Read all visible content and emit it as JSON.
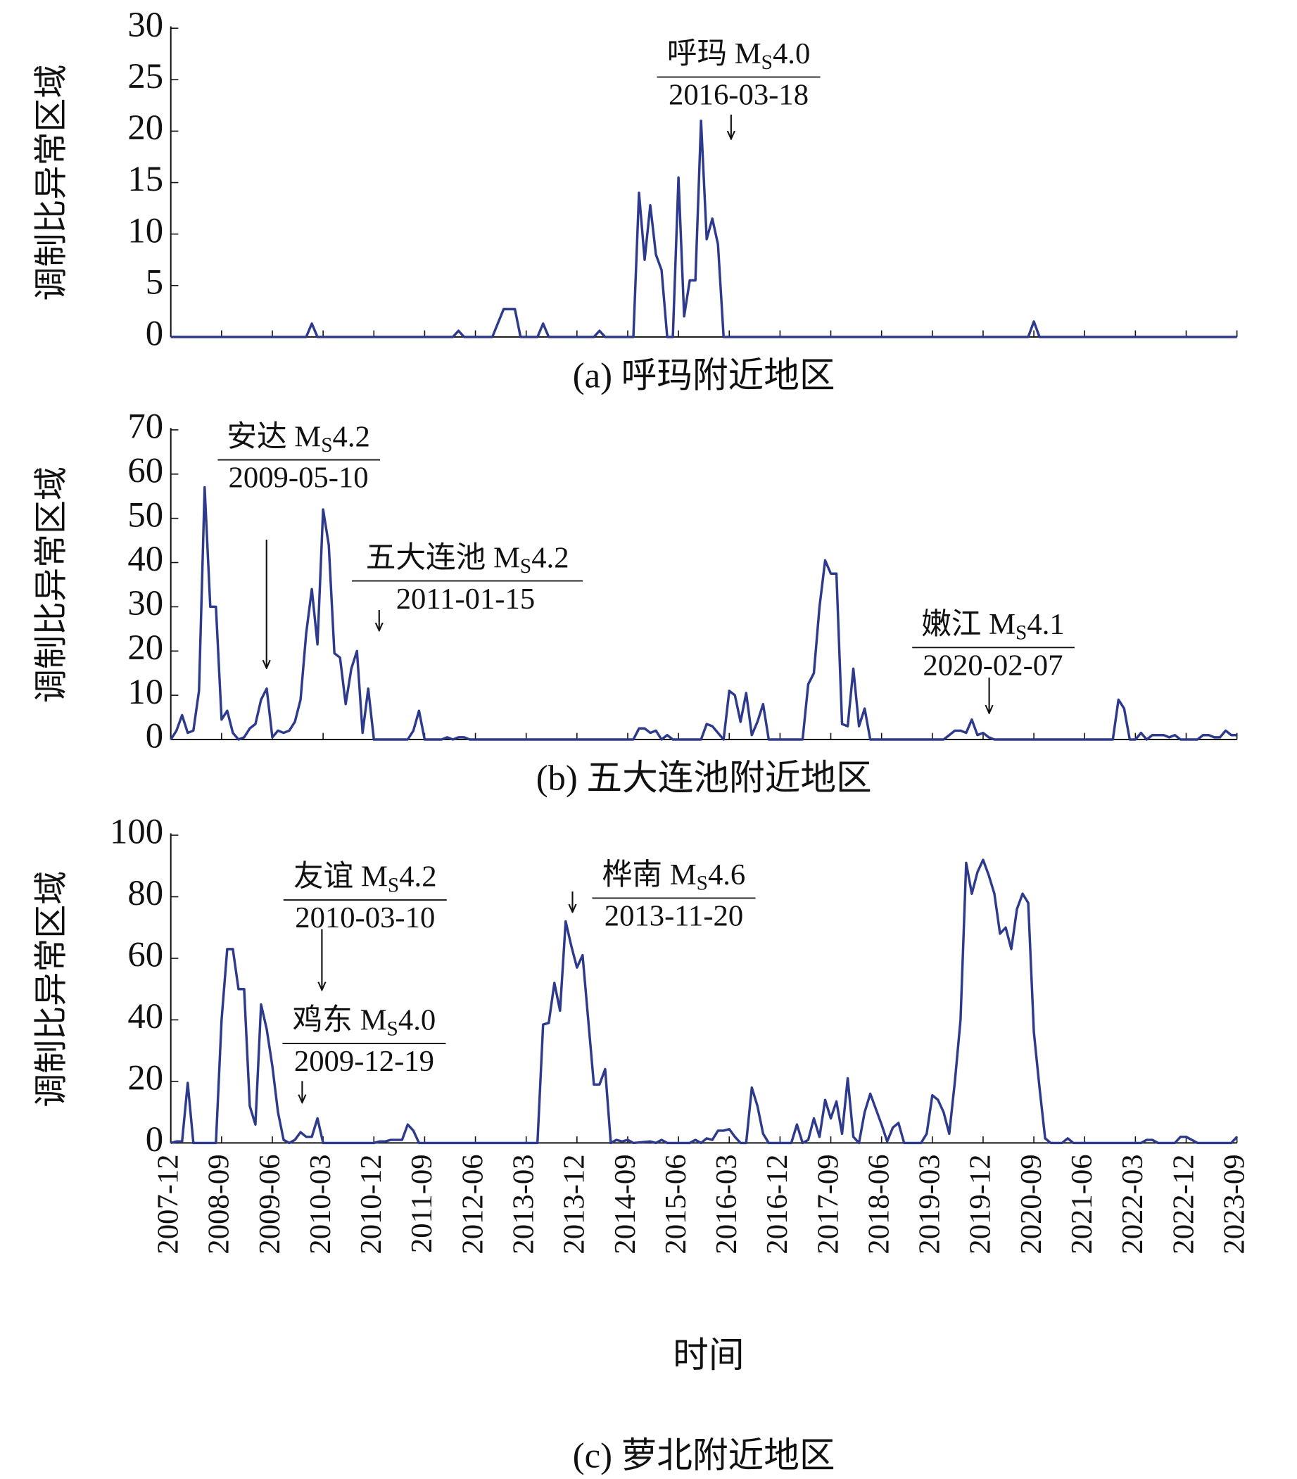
{
  "chart_data": [
    {
      "type": "line",
      "caption": "(a) 呼玛附近地区",
      "ylabel": "调制比异常区域",
      "xlim": [
        "2007-12",
        "2023-09"
      ],
      "ylim": [
        0,
        30
      ],
      "yticks": [
        0,
        5,
        10,
        15,
        20,
        25,
        30
      ],
      "color": "#2e3a8c",
      "x": [
        "2007-12",
        "2009-12",
        "2010-01",
        "2010-02",
        "2012-02",
        "2012-03",
        "2012-04",
        "2012-09",
        "2012-11",
        "2013-01",
        "2013-02",
        "2013-05",
        "2013-06",
        "2013-07",
        "2014-03",
        "2014-04",
        "2014-05",
        "2014-10",
        "2014-11",
        "2014-12",
        "2015-01",
        "2015-02",
        "2015-03",
        "2015-04",
        "2015-05",
        "2015-06",
        "2015-07",
        "2015-08",
        "2015-09",
        "2015-10",
        "2015-11",
        "2015-12",
        "2016-01",
        "2016-02",
        "2020-08",
        "2020-09",
        "2020-10",
        "2023-09"
      ],
      "values": [
        0,
        0,
        1.3,
        0,
        0,
        0.6,
        0,
        0,
        2.7,
        2.7,
        0,
        0,
        1.3,
        0,
        0,
        0.6,
        0,
        0,
        14,
        7.5,
        12.8,
        8,
        6.5,
        0,
        0,
        15.5,
        2,
        5.5,
        5.5,
        21,
        9.5,
        11.5,
        9,
        0,
        0,
        1.5,
        0,
        0
      ],
      "annotations": [
        {
          "label": [
            "呼玛 M",
            "S",
            "4.0"
          ],
          "date": "2016-03-18"
        }
      ]
    },
    {
      "type": "line",
      "caption": "(b) 五大连池附近地区",
      "ylabel": "调制比异常区域",
      "xlim": [
        "2007-12",
        "2023-09"
      ],
      "ylim": [
        0,
        70
      ],
      "yticks": [
        0,
        10,
        20,
        30,
        40,
        50,
        60,
        70
      ],
      "color": "#2e3a8c",
      "x": [
        "2007-12",
        "2008-01",
        "2008-02",
        "2008-03",
        "2008-04",
        "2008-05",
        "2008-06",
        "2008-07",
        "2008-08",
        "2008-09",
        "2008-10",
        "2008-11",
        "2008-12",
        "2009-01",
        "2009-02",
        "2009-03",
        "2009-04",
        "2009-05",
        "2009-06",
        "2009-07",
        "2009-08",
        "2009-09",
        "2009-10",
        "2009-11",
        "2009-12",
        "2010-01",
        "2010-02",
        "2010-03",
        "2010-04",
        "2010-05",
        "2010-06",
        "2010-07",
        "2010-08",
        "2010-09",
        "2010-10",
        "2010-11",
        "2010-12",
        "2011-06",
        "2011-07",
        "2011-08",
        "2011-09",
        "2011-12",
        "2012-01",
        "2012-02",
        "2012-03",
        "2012-04",
        "2012-05",
        "2014-10",
        "2014-11",
        "2014-12",
        "2015-01",
        "2015-02",
        "2015-03",
        "2015-04",
        "2015-05",
        "2015-10",
        "2015-11",
        "2015-12",
        "2016-01",
        "2016-02",
        "2016-03",
        "2016-04",
        "2016-05",
        "2016-06",
        "2016-07",
        "2016-08",
        "2016-09",
        "2016-10",
        "2017-04",
        "2017-05",
        "2017-06",
        "2017-07",
        "2017-08",
        "2017-09",
        "2017-10",
        "2017-11",
        "2017-12",
        "2018-01",
        "2018-02",
        "2018-03",
        "2018-04",
        "2019-05",
        "2019-06",
        "2019-07",
        "2019-08",
        "2019-09",
        "2019-10",
        "2019-11",
        "2019-12",
        "2020-01",
        "2020-02",
        "2021-11",
        "2021-12",
        "2022-01",
        "2022-02",
        "2022-03",
        "2022-04",
        "2022-05",
        "2022-06",
        "2022-07",
        "2022-08",
        "2022-09",
        "2022-10",
        "2022-11",
        "2023-02",
        "2023-03",
        "2023-04",
        "2023-05",
        "2023-06",
        "2023-07",
        "2023-08",
        "2023-09"
      ],
      "values": [
        0,
        2,
        5.5,
        1.5,
        2,
        11,
        57,
        30,
        30,
        4.5,
        6.5,
        1.5,
        0,
        0.5,
        2.5,
        3.5,
        9,
        11.5,
        0.5,
        2,
        1.5,
        2,
        4,
        9,
        24,
        34,
        21.5,
        52,
        44,
        19.5,
        18.5,
        8,
        16,
        20,
        1.5,
        11.5,
        0,
        0,
        2,
        6.5,
        0,
        0,
        0.5,
        0,
        0.5,
        0.5,
        0,
        0,
        2.5,
        2.5,
        1.5,
        2,
        0,
        1,
        0,
        0,
        3.5,
        3,
        1.5,
        0,
        11,
        10,
        4,
        10.5,
        1,
        4,
        8,
        0,
        0,
        12.5,
        15,
        30,
        40.5,
        37.5,
        37.5,
        3.5,
        3,
        16,
        3,
        7,
        0,
        0,
        1,
        2,
        2,
        1.5,
        4.5,
        1,
        1.5,
        0.5,
        0,
        0,
        9,
        7,
        0,
        0,
        1.5,
        0,
        1,
        1,
        1,
        0.5,
        1,
        0,
        0,
        1,
        1,
        0.5,
        0.5,
        2,
        1,
        1
      ],
      "annotations": [
        {
          "label": [
            "安达 M",
            "S",
            "4.2"
          ],
          "date": "2009-05-10"
        },
        {
          "label": [
            "五大连池 M",
            "S",
            "4.2"
          ],
          "date": "2011-01-15"
        },
        {
          "label": [
            "嫩江 M",
            "S",
            "4.1"
          ],
          "date": "2020-02-07"
        }
      ]
    },
    {
      "type": "line",
      "caption": "(c) 萝北附近地区",
      "ylabel": "调制比异常区域",
      "xlabel": "时间",
      "xlim": [
        "2007-12",
        "2023-09"
      ],
      "ylim": [
        0,
        100
      ],
      "yticks": [
        0,
        20,
        40,
        60,
        80,
        100
      ],
      "xticks": [
        "2007-12",
        "2008-09",
        "2009-06",
        "2010-03",
        "2010-12",
        "2011-09",
        "2012-06",
        "2013-03",
        "2013-12",
        "2014-09",
        "2015-06",
        "2016-03",
        "2016-12",
        "2017-09",
        "2018-06",
        "2019-03",
        "2019-12",
        "2020-09",
        "2021-06",
        "2022-03",
        "2022-12",
        "2023-09"
      ],
      "color": "#2e3a8c",
      "x": [
        "2007-12",
        "2008-01",
        "2008-02",
        "2008-03",
        "2008-04",
        "2008-08",
        "2008-09",
        "2008-10",
        "2008-11",
        "2008-12",
        "2009-01",
        "2009-02",
        "2009-03",
        "2009-04",
        "2009-05",
        "2009-06",
        "2009-07",
        "2009-08",
        "2009-09",
        "2009-10",
        "2009-11",
        "2009-12",
        "2010-01",
        "2010-02",
        "2010-03",
        "2010-12",
        "2011-01",
        "2011-02",
        "2011-03",
        "2011-04",
        "2011-05",
        "2011-06",
        "2011-07",
        "2011-08",
        "2013-05",
        "2013-06",
        "2013-07",
        "2013-08",
        "2013-09",
        "2013-10",
        "2013-11",
        "2013-12",
        "2014-01",
        "2014-02",
        "2014-03",
        "2014-04",
        "2014-05",
        "2014-06",
        "2014-07",
        "2014-08",
        "2014-09",
        "2014-10",
        "2015-01",
        "2015-02",
        "2015-03",
        "2015-04",
        "2015-08",
        "2015-09",
        "2015-10",
        "2015-11",
        "2015-12",
        "2016-01",
        "2016-02",
        "2016-03",
        "2016-04",
        "2016-05",
        "2016-06",
        "2016-07",
        "2016-08",
        "2016-09",
        "2016-10",
        "2017-02",
        "2017-03",
        "2017-04",
        "2017-05",
        "2017-06",
        "2017-07",
        "2017-08",
        "2017-09",
        "2017-10",
        "2017-11",
        "2017-12",
        "2018-01",
        "2018-02",
        "2018-03",
        "2018-04",
        "2018-05",
        "2018-06",
        "2018-07",
        "2018-08",
        "2018-09",
        "2018-10",
        "2019-01",
        "2019-02",
        "2019-03",
        "2019-04",
        "2019-05",
        "2019-06",
        "2019-07",
        "2019-08",
        "2019-09",
        "2019-10",
        "2019-11",
        "2019-12",
        "2020-01",
        "2020-02",
        "2020-03",
        "2020-04",
        "2020-05",
        "2020-06",
        "2020-07",
        "2020-08",
        "2020-09",
        "2020-10",
        "2020-11",
        "2020-12",
        "2021-02",
        "2021-03",
        "2021-04",
        "2022-04",
        "2022-05",
        "2022-06",
        "2022-07",
        "2022-10",
        "2022-11",
        "2022-12",
        "2023-01",
        "2023-02",
        "2023-08",
        "2023-09"
      ],
      "values": [
        0,
        0.5,
        0.5,
        19.5,
        0,
        0,
        40,
        63,
        63,
        50,
        50,
        12,
        6,
        45,
        37,
        25,
        10,
        1,
        0,
        1,
        3.5,
        2,
        2,
        8,
        0,
        0,
        0.5,
        0.5,
        1,
        1,
        1,
        6,
        4,
        0,
        0,
        38.5,
        39,
        52,
        43,
        72,
        64,
        57,
        61,
        40,
        19,
        19,
        24,
        0,
        1,
        0.5,
        1,
        0,
        0.5,
        0,
        1,
        0,
        0,
        1,
        0,
        1.5,
        1,
        4,
        4,
        4.5,
        2,
        0,
        0,
        18,
        12,
        3,
        0,
        0,
        6,
        0,
        1,
        8,
        2,
        14,
        8,
        13.5,
        3,
        21,
        2,
        0,
        10,
        16,
        11,
        6,
        0.5,
        5,
        6.5,
        0,
        0,
        3,
        15.5,
        14,
        10,
        3,
        20,
        40,
        91,
        81,
        88,
        92,
        87,
        81,
        68,
        70,
        63,
        76,
        81,
        78,
        36,
        18,
        1.5,
        0,
        0,
        1.5,
        0,
        0,
        1,
        1,
        0,
        0,
        2,
        2,
        1,
        0,
        0,
        2
      ],
      "annotations": [
        {
          "label": [
            "友谊 M",
            "S",
            "4.2"
          ],
          "date": "2010-03-10"
        },
        {
          "label": [
            "鸡东 M",
            "S",
            "4.0"
          ],
          "date": "2009-12-19"
        },
        {
          "label": [
            "桦南 M",
            "S",
            "4.6"
          ],
          "date": "2013-11-20"
        }
      ]
    }
  ]
}
